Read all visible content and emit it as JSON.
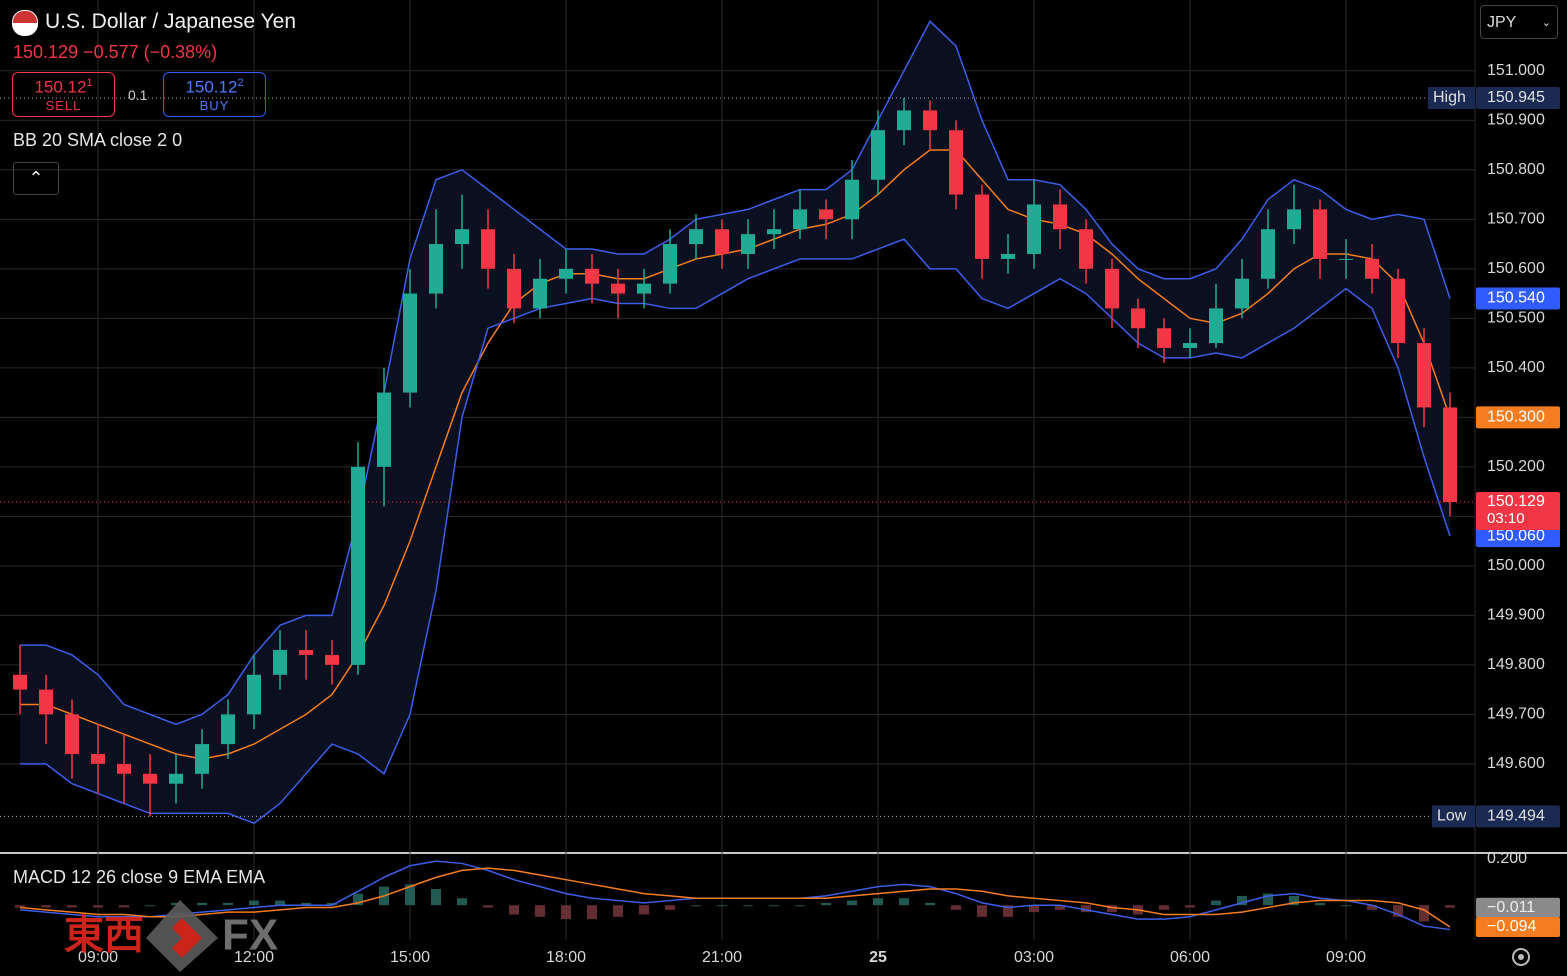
{
  "chart_data": {
    "type": "candlestick",
    "title": "U.S. Dollar / Japanese Yen",
    "quote": "150.129 −0.577 (−0.38%)",
    "currency": "JPY",
    "sell": {
      "price": "150.12",
      "pip": "1",
      "label": "SELL"
    },
    "buy": {
      "price": "150.12",
      "pip": "2",
      "label": "BUY"
    },
    "spread": "0.1",
    "indicator": "BB 20 SMA close 2 0",
    "categories": [
      null,
      null,
      null,
      "09:00",
      null,
      null,
      null,
      null,
      null,
      "12:00",
      null,
      null,
      null,
      null,
      null,
      "15:00",
      null,
      null,
      null,
      null,
      null,
      "18:00",
      null,
      null,
      null,
      null,
      null,
      "21:00",
      null,
      null,
      null,
      null,
      null,
      "25",
      null,
      null,
      null,
      null,
      null,
      "03:00",
      null,
      null,
      null,
      null,
      null,
      "06:00",
      null,
      null,
      null,
      null,
      null,
      "09:00",
      null,
      null,
      null,
      null
    ],
    "up_color": "#22ab94",
    "down_color": "#f23645",
    "open": [
      149.78,
      149.75,
      149.7,
      149.62,
      149.6,
      149.58,
      149.56,
      149.58,
      149.64,
      149.7,
      149.78,
      149.83,
      149.82,
      149.8,
      150.2,
      150.35,
      150.55,
      150.65,
      150.68,
      150.6,
      150.52,
      150.58,
      150.6,
      150.57,
      150.55,
      150.57,
      150.65,
      150.68,
      150.63,
      150.67,
      150.68,
      150.72,
      150.7,
      150.78,
      150.88,
      150.92,
      150.88,
      150.75,
      150.62,
      150.63,
      150.73,
      150.68,
      150.6,
      150.52,
      150.48,
      150.44,
      150.45,
      150.52,
      150.58,
      150.68,
      150.72,
      150.62,
      150.62,
      150.58,
      150.45,
      150.32
    ],
    "high": [
      149.84,
      149.78,
      149.73,
      149.68,
      149.66,
      149.62,
      149.62,
      149.67,
      149.73,
      149.82,
      149.87,
      149.87,
      149.85,
      150.25,
      150.4,
      150.6,
      150.72,
      150.75,
      150.72,
      150.63,
      150.62,
      150.64,
      150.63,
      150.6,
      150.6,
      150.68,
      150.71,
      150.7,
      150.7,
      150.72,
      150.76,
      150.74,
      150.82,
      150.92,
      150.945,
      150.94,
      150.9,
      150.77,
      150.67,
      150.78,
      150.76,
      150.7,
      150.62,
      150.54,
      150.5,
      150.48,
      150.57,
      150.62,
      150.72,
      150.77,
      150.74,
      150.66,
      150.65,
      150.6,
      150.48,
      150.35
    ],
    "low": [
      149.7,
      149.64,
      149.57,
      149.54,
      149.52,
      149.494,
      149.52,
      149.55,
      149.61,
      149.67,
      149.75,
      149.77,
      149.76,
      149.78,
      150.12,
      150.32,
      150.52,
      150.6,
      150.56,
      150.49,
      150.5,
      150.55,
      150.53,
      150.5,
      150.52,
      150.55,
      150.62,
      150.6,
      150.6,
      150.64,
      150.66,
      150.66,
      150.66,
      150.75,
      150.85,
      150.84,
      150.72,
      150.58,
      150.59,
      150.6,
      150.64,
      150.57,
      150.48,
      150.44,
      150.41,
      150.42,
      150.44,
      150.5,
      150.56,
      150.65,
      150.58,
      150.58,
      150.55,
      150.42,
      150.28,
      150.1
    ],
    "close": [
      149.75,
      149.7,
      149.62,
      149.6,
      149.58,
      149.56,
      149.58,
      149.64,
      149.7,
      149.78,
      149.83,
      149.82,
      149.8,
      150.2,
      150.35,
      150.55,
      150.65,
      150.68,
      150.6,
      150.52,
      150.58,
      150.6,
      150.57,
      150.55,
      150.57,
      150.65,
      150.68,
      150.63,
      150.67,
      150.68,
      150.72,
      150.7,
      150.78,
      150.88,
      150.92,
      150.88,
      150.75,
      150.62,
      150.63,
      150.73,
      150.68,
      150.6,
      150.52,
      150.48,
      150.44,
      150.45,
      150.52,
      150.58,
      150.68,
      150.72,
      150.62,
      150.62,
      150.58,
      150.45,
      150.32,
      150.129
    ],
    "bollinger": {
      "upper": {
        "color": "#3d5ee8",
        "values": [
          149.84,
          149.84,
          149.82,
          149.78,
          149.72,
          149.7,
          149.68,
          149.7,
          149.74,
          149.82,
          149.88,
          149.9,
          149.9,
          150.1,
          150.35,
          150.62,
          150.78,
          150.8,
          150.76,
          150.72,
          150.68,
          150.64,
          150.64,
          150.63,
          150.63,
          150.66,
          150.7,
          150.71,
          150.72,
          150.74,
          150.76,
          150.76,
          150.8,
          150.9,
          151.0,
          151.1,
          151.05,
          150.9,
          150.78,
          150.78,
          150.77,
          150.72,
          150.65,
          150.6,
          150.58,
          150.58,
          150.6,
          150.66,
          150.74,
          150.78,
          150.76,
          150.72,
          150.7,
          150.71,
          150.7,
          150.54
        ],
        "tag": {
          "value": 150.54,
          "label": "150.540"
        }
      },
      "middle": {
        "color": "#f57c1f",
        "values": [
          149.72,
          149.72,
          149.7,
          149.68,
          149.66,
          149.64,
          149.62,
          149.61,
          149.62,
          149.64,
          149.67,
          149.7,
          149.74,
          149.82,
          149.92,
          150.05,
          150.2,
          150.35,
          150.45,
          150.53,
          150.57,
          150.59,
          150.59,
          150.58,
          150.58,
          150.6,
          150.62,
          150.63,
          150.64,
          150.66,
          150.68,
          150.69,
          150.71,
          150.75,
          150.8,
          150.84,
          150.84,
          150.78,
          150.72,
          150.7,
          150.69,
          150.67,
          150.63,
          150.58,
          150.54,
          150.5,
          150.49,
          150.51,
          150.55,
          150.6,
          150.63,
          150.63,
          150.62,
          150.57,
          150.45,
          150.3
        ],
        "tag": {
          "value": 150.3,
          "label": "150.300"
        }
      },
      "lower": {
        "color": "#3d5ee8",
        "values": [
          149.6,
          149.6,
          149.56,
          149.54,
          149.52,
          149.5,
          149.5,
          149.5,
          149.5,
          149.48,
          149.52,
          149.58,
          149.64,
          149.62,
          149.58,
          149.7,
          149.95,
          150.3,
          150.48,
          150.5,
          150.52,
          150.53,
          150.54,
          150.53,
          150.53,
          150.52,
          150.52,
          150.55,
          150.58,
          150.6,
          150.62,
          150.62,
          150.62,
          150.64,
          150.66,
          150.6,
          150.6,
          150.54,
          150.52,
          150.55,
          150.58,
          150.55,
          150.5,
          150.45,
          150.42,
          150.42,
          150.43,
          150.42,
          150.45,
          150.48,
          150.52,
          150.56,
          150.52,
          150.4,
          150.22,
          150.06
        ],
        "tag": {
          "value": 150.06,
          "label": "150.060"
        }
      }
    },
    "high_marker": {
      "name": "High",
      "value": 150.945
    },
    "low_marker": {
      "name": "Low",
      "value": 149.494
    },
    "last": {
      "value": 150.129,
      "countdown": "03:10"
    },
    "ylim": [
      149.42,
      151.143
    ],
    "yticks": [
      {
        "value": 149.6,
        "label": "149.600"
      },
      {
        "value": 149.7,
        "label": "149.700"
      },
      {
        "value": 149.8,
        "label": "149.800"
      },
      {
        "value": 149.9,
        "label": "149.900"
      },
      {
        "value": 150.0,
        "label": "150.000"
      },
      {
        "value": 150.1,
        "label": "150.100"
      },
      {
        "value": 150.2,
        "label": "150.200"
      },
      {
        "value": 150.3,
        "label": "150.300"
      },
      {
        "value": 150.4,
        "label": "150.400"
      },
      {
        "value": 150.5,
        "label": "150.500"
      },
      {
        "value": 150.6,
        "label": "150.600"
      },
      {
        "value": 150.7,
        "label": "150.700"
      },
      {
        "value": 150.8,
        "label": "150.800"
      },
      {
        "value": 150.9,
        "label": "150.900"
      },
      {
        "value": 151.0,
        "label": "151.000"
      }
    ],
    "grid": true,
    "macd": {
      "title": "MACD 12 26 close 9 EMA EMA",
      "ylim": [
        -0.15,
        0.225
      ],
      "yticks": [
        {
          "value": 0.2,
          "label": "0.200"
        }
      ],
      "macd": {
        "color": "#3d5ee8",
        "values": [
          -0.02,
          -0.03,
          -0.04,
          -0.05,
          -0.05,
          -0.05,
          -0.04,
          -0.03,
          -0.02,
          -0.01,
          0,
          0,
          0,
          0.06,
          0.12,
          0.17,
          0.19,
          0.18,
          0.15,
          0.11,
          0.08,
          0.05,
          0.03,
          0.02,
          0.01,
          0.02,
          0.03,
          0.03,
          0.03,
          0.03,
          0.03,
          0.04,
          0.06,
          0.08,
          0.09,
          0.08,
          0.05,
          0.01,
          -0.01,
          0,
          0,
          -0.02,
          -0.04,
          -0.06,
          -0.06,
          -0.05,
          -0.02,
          0.01,
          0.04,
          0.05,
          0.03,
          0.02,
          0,
          -0.04,
          -0.09,
          -0.105
        ]
      },
      "signal": {
        "color": "#f57c1f",
        "values": [
          -0.01,
          -0.02,
          -0.03,
          -0.04,
          -0.04,
          -0.05,
          -0.05,
          -0.04,
          -0.03,
          -0.03,
          -0.02,
          -0.01,
          -0.01,
          0.01,
          0.04,
          0.08,
          0.12,
          0.15,
          0.16,
          0.15,
          0.13,
          0.11,
          0.09,
          0.07,
          0.05,
          0.04,
          0.03,
          0.03,
          0.03,
          0.03,
          0.03,
          0.03,
          0.04,
          0.05,
          0.06,
          0.07,
          0.07,
          0.06,
          0.04,
          0.03,
          0.02,
          0.01,
          -0.01,
          -0.02,
          -0.04,
          -0.04,
          -0.04,
          -0.03,
          -0.01,
          0.01,
          0.02,
          0.02,
          0.02,
          0.01,
          -0.02,
          -0.094
        ],
        "tag": {
          "value": -0.094,
          "label": "−0.094"
        }
      },
      "histogram": {
        "values": [
          -0.01,
          -0.01,
          -0.01,
          -0.01,
          -0.01,
          0,
          0.01,
          0.01,
          0.01,
          0.02,
          0.02,
          0.01,
          0.01,
          0.05,
          0.08,
          0.09,
          0.07,
          0.03,
          -0.01,
          -0.04,
          -0.05,
          -0.06,
          -0.06,
          -0.05,
          -0.04,
          -0.02,
          0,
          0,
          0,
          0,
          0,
          0.01,
          0.02,
          0.03,
          0.03,
          0.01,
          -0.02,
          -0.05,
          -0.05,
          -0.03,
          -0.02,
          -0.03,
          -0.03,
          -0.04,
          -0.02,
          -0.01,
          0.02,
          0.04,
          0.05,
          0.04,
          0.01,
          0,
          -0.02,
          -0.05,
          -0.07,
          -0.011
        ],
        "tag": {
          "value": -0.011,
          "label": "−0.011"
        }
      }
    },
    "watermark": {
      "cjk": "東西",
      "latin": "FX"
    }
  }
}
